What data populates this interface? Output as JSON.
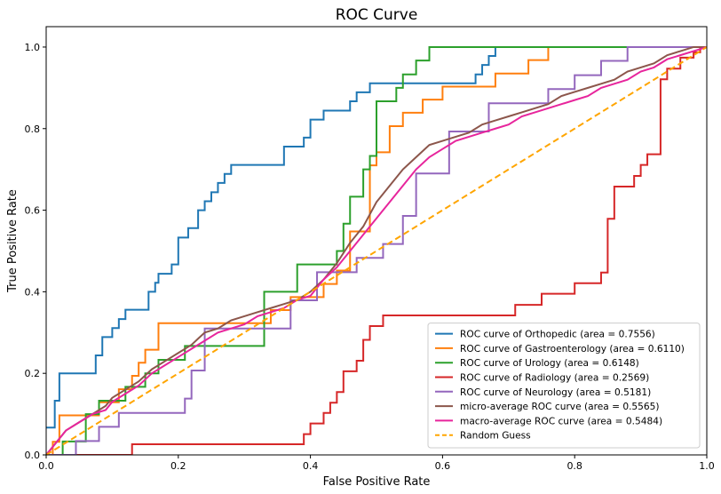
{
  "chart_data": {
    "type": "line",
    "title": "ROC Curve",
    "xlabel": "False Positive Rate",
    "ylabel": "True Positive Rate",
    "xlim": [
      0,
      1
    ],
    "ylim": [
      0,
      1.05
    ],
    "xticks": [
      "0.0",
      "0.2",
      "0.4",
      "0.6",
      "0.8",
      "1.0"
    ],
    "yticks": [
      "0.0",
      "0.2",
      "0.4",
      "0.6",
      "0.8",
      "1.0"
    ],
    "grid": false,
    "legend_position": "lower-right",
    "series": [
      {
        "name": "ROC curve of Orthopedic (area = 0.7556)",
        "color": "#1f77b4",
        "step": true,
        "x": [
          0,
          0.013,
          0.013,
          0.02,
          0.02,
          0.075,
          0.075,
          0.085,
          0.085,
          0.1,
          0.1,
          0.11,
          0.11,
          0.12,
          0.12,
          0.155,
          0.155,
          0.165,
          0.165,
          0.17,
          0.17,
          0.19,
          0.19,
          0.2,
          0.2,
          0.215,
          0.215,
          0.23,
          0.23,
          0.24,
          0.24,
          0.25,
          0.25,
          0.26,
          0.26,
          0.27,
          0.27,
          0.28,
          0.28,
          0.36,
          0.36,
          0.39,
          0.39,
          0.4,
          0.4,
          0.42,
          0.42,
          0.46,
          0.46,
          0.47,
          0.47,
          0.48,
          0.48,
          0.49,
          0.49,
          0.5,
          0.5,
          0.51,
          0.51,
          0.52,
          0.52,
          0.54,
          0.54,
          0.65,
          0.65,
          0.66,
          0.66,
          0.67,
          0.67,
          0.68,
          0.68,
          1.0
        ],
        "y": [
          0.067,
          0.067,
          0.133,
          0.133,
          0.2,
          0.2,
          0.244,
          0.244,
          0.289,
          0.289,
          0.311,
          0.311,
          0.333,
          0.333,
          0.356,
          0.356,
          0.4,
          0.4,
          0.422,
          0.422,
          0.444,
          0.444,
          0.467,
          0.467,
          0.533,
          0.533,
          0.556,
          0.556,
          0.6,
          0.6,
          0.622,
          0.622,
          0.644,
          0.644,
          0.667,
          0.667,
          0.689,
          0.689,
          0.711,
          0.711,
          0.756,
          0.756,
          0.778,
          0.778,
          0.822,
          0.822,
          0.844,
          0.844,
          0.867,
          0.867,
          0.889,
          0.889,
          0.889,
          0.889,
          0.911,
          0.911,
          0.911,
          0.911,
          0.911,
          0.911,
          0.911,
          0.911,
          0.911,
          0.911,
          0.933,
          0.933,
          0.956,
          0.956,
          0.978,
          0.978,
          1.0,
          1.0
        ]
      },
      {
        "name": "ROC curve of Gastroenterology (area = 0.6110)",
        "color": "#ff7f0e",
        "step": true,
        "x": [
          0,
          0.01,
          0.01,
          0.02,
          0.02,
          0.08,
          0.08,
          0.11,
          0.11,
          0.13,
          0.13,
          0.14,
          0.14,
          0.15,
          0.15,
          0.17,
          0.17,
          0.23,
          0.23,
          0.32,
          0.32,
          0.34,
          0.34,
          0.37,
          0.37,
          0.42,
          0.42,
          0.44,
          0.44,
          0.46,
          0.46,
          0.49,
          0.49,
          0.5,
          0.5,
          0.52,
          0.52,
          0.54,
          0.54,
          0.55,
          0.55,
          0.57,
          0.57,
          0.6,
          0.6,
          0.68,
          0.68,
          0.73,
          0.73,
          0.76,
          0.76,
          0.8,
          0.8,
          0.98,
          0.98,
          1.0
        ],
        "y": [
          0,
          0,
          0.032,
          0.032,
          0.097,
          0.097,
          0.129,
          0.129,
          0.161,
          0.161,
          0.194,
          0.194,
          0.226,
          0.226,
          0.258,
          0.258,
          0.323,
          0.323,
          0.323,
          0.323,
          0.323,
          0.323,
          0.355,
          0.355,
          0.387,
          0.387,
          0.419,
          0.419,
          0.452,
          0.452,
          0.548,
          0.548,
          0.71,
          0.71,
          0.742,
          0.742,
          0.806,
          0.806,
          0.839,
          0.839,
          0.839,
          0.839,
          0.871,
          0.871,
          0.903,
          0.903,
          0.935,
          0.935,
          0.968,
          0.968,
          1.0,
          1.0,
          1.0,
          1.0,
          1.0,
          1.0
        ]
      },
      {
        "name": "ROC curve of Urology (area = 0.6148)",
        "color": "#2ca02c",
        "step": true,
        "x": [
          0,
          0.025,
          0.025,
          0.06,
          0.06,
          0.08,
          0.08,
          0.09,
          0.09,
          0.12,
          0.12,
          0.13,
          0.13,
          0.15,
          0.15,
          0.17,
          0.17,
          0.19,
          0.19,
          0.21,
          0.21,
          0.33,
          0.33,
          0.38,
          0.38,
          0.44,
          0.44,
          0.45,
          0.45,
          0.46,
          0.46,
          0.48,
          0.48,
          0.49,
          0.49,
          0.5,
          0.5,
          0.53,
          0.53,
          0.54,
          0.54,
          0.56,
          0.56,
          0.58,
          0.58,
          0.62,
          0.62,
          0.64,
          0.64,
          1.0
        ],
        "y": [
          0,
          0,
          0.033,
          0.033,
          0.1,
          0.1,
          0.133,
          0.133,
          0.133,
          0.133,
          0.167,
          0.167,
          0.167,
          0.167,
          0.2,
          0.2,
          0.233,
          0.233,
          0.233,
          0.233,
          0.267,
          0.267,
          0.4,
          0.4,
          0.467,
          0.467,
          0.5,
          0.5,
          0.567,
          0.567,
          0.633,
          0.633,
          0.7,
          0.7,
          0.733,
          0.733,
          0.867,
          0.867,
          0.9,
          0.9,
          0.933,
          0.933,
          0.967,
          0.967,
          1.0,
          1.0,
          1.0,
          1.0,
          1.0,
          1.0
        ]
      },
      {
        "name": "ROC curve of Radiology (area = 0.2569)",
        "color": "#d62728",
        "step": true,
        "x": [
          0,
          0.13,
          0.13,
          0.39,
          0.39,
          0.4,
          0.4,
          0.42,
          0.42,
          0.43,
          0.43,
          0.44,
          0.44,
          0.45,
          0.45,
          0.47,
          0.47,
          0.48,
          0.48,
          0.49,
          0.49,
          0.51,
          0.51,
          0.71,
          0.71,
          0.75,
          0.75,
          0.8,
          0.8,
          0.84,
          0.84,
          0.85,
          0.85,
          0.86,
          0.86,
          0.89,
          0.89,
          0.9,
          0.9,
          0.91,
          0.91,
          0.93,
          0.93,
          0.94,
          0.94,
          0.96,
          0.96,
          0.98,
          0.98,
          0.99,
          0.99,
          1.0
        ],
        "y": [
          0,
          0,
          0.026,
          0.026,
          0.051,
          0.051,
          0.077,
          0.077,
          0.103,
          0.103,
          0.128,
          0.128,
          0.154,
          0.154,
          0.205,
          0.205,
          0.231,
          0.231,
          0.282,
          0.282,
          0.316,
          0.316,
          0.342,
          0.342,
          0.368,
          0.368,
          0.395,
          0.395,
          0.421,
          0.421,
          0.447,
          0.447,
          0.579,
          0.579,
          0.658,
          0.658,
          0.684,
          0.684,
          0.711,
          0.711,
          0.737,
          0.737,
          0.921,
          0.921,
          0.947,
          0.947,
          0.974,
          0.974,
          0.987,
          0.987,
          1.0,
          1.0
        ]
      },
      {
        "name": "ROC curve of Neurology (area = 0.5181)",
        "color": "#9467bd",
        "step": true,
        "x": [
          0,
          0.04,
          0.04,
          0.045,
          0.045,
          0.08,
          0.08,
          0.09,
          0.09,
          0.11,
          0.11,
          0.21,
          0.21,
          0.22,
          0.22,
          0.24,
          0.24,
          0.28,
          0.28,
          0.37,
          0.37,
          0.41,
          0.41,
          0.47,
          0.47,
          0.51,
          0.51,
          0.54,
          0.54,
          0.56,
          0.56,
          0.61,
          0.61,
          0.67,
          0.67,
          0.76,
          0.76,
          0.8,
          0.8,
          0.84,
          0.84,
          0.86,
          0.86,
          0.88,
          0.88,
          0.9,
          0.9,
          1.0
        ],
        "y": [
          0,
          0,
          0,
          0,
          0.034,
          0.034,
          0.069,
          0.069,
          0.069,
          0.069,
          0.103,
          0.103,
          0.138,
          0.138,
          0.207,
          0.207,
          0.31,
          0.31,
          0.31,
          0.31,
          0.379,
          0.379,
          0.448,
          0.448,
          0.483,
          0.483,
          0.517,
          0.517,
          0.586,
          0.586,
          0.69,
          0.69,
          0.793,
          0.793,
          0.862,
          0.862,
          0.897,
          0.897,
          0.931,
          0.931,
          0.966,
          0.966,
          0.966,
          0.966,
          1.0,
          1.0,
          1.0,
          1.0
        ]
      },
      {
        "name": "micro-average ROC curve (area = 0.5565)",
        "color": "#8c564b",
        "step": false,
        "x": [
          0,
          0.01,
          0.02,
          0.03,
          0.05,
          0.07,
          0.09,
          0.1,
          0.12,
          0.14,
          0.16,
          0.18,
          0.2,
          0.22,
          0.24,
          0.26,
          0.28,
          0.3,
          0.32,
          0.34,
          0.36,
          0.38,
          0.4,
          0.42,
          0.44,
          0.46,
          0.48,
          0.5,
          0.52,
          0.54,
          0.56,
          0.58,
          0.6,
          0.62,
          0.64,
          0.66,
          0.68,
          0.7,
          0.72,
          0.74,
          0.76,
          0.78,
          0.8,
          0.82,
          0.84,
          0.86,
          0.88,
          0.9,
          0.92,
          0.94,
          0.96,
          0.98,
          1.0
        ],
        "y": [
          0,
          0.02,
          0.04,
          0.06,
          0.08,
          0.1,
          0.12,
          0.14,
          0.16,
          0.18,
          0.21,
          0.23,
          0.25,
          0.27,
          0.3,
          0.31,
          0.33,
          0.34,
          0.35,
          0.36,
          0.37,
          0.38,
          0.4,
          0.43,
          0.47,
          0.52,
          0.56,
          0.62,
          0.66,
          0.7,
          0.73,
          0.76,
          0.77,
          0.78,
          0.79,
          0.81,
          0.82,
          0.83,
          0.84,
          0.85,
          0.86,
          0.88,
          0.89,
          0.9,
          0.91,
          0.92,
          0.94,
          0.95,
          0.96,
          0.98,
          0.99,
          1.0,
          1.0
        ]
      },
      {
        "name": "macro-average ROC curve (area = 0.5484)",
        "color": "#e7259c",
        "step": false,
        "x": [
          0,
          0.01,
          0.02,
          0.03,
          0.05,
          0.07,
          0.09,
          0.1,
          0.12,
          0.14,
          0.16,
          0.18,
          0.2,
          0.22,
          0.24,
          0.26,
          0.28,
          0.3,
          0.32,
          0.34,
          0.36,
          0.38,
          0.4,
          0.42,
          0.44,
          0.46,
          0.48,
          0.5,
          0.52,
          0.54,
          0.56,
          0.58,
          0.6,
          0.62,
          0.64,
          0.66,
          0.68,
          0.7,
          0.72,
          0.74,
          0.76,
          0.78,
          0.8,
          0.82,
          0.84,
          0.86,
          0.88,
          0.9,
          0.92,
          0.94,
          0.96,
          0.98,
          1.0
        ],
        "y": [
          0,
          0.02,
          0.04,
          0.06,
          0.08,
          0.1,
          0.11,
          0.13,
          0.15,
          0.17,
          0.2,
          0.22,
          0.24,
          0.26,
          0.28,
          0.3,
          0.31,
          0.32,
          0.34,
          0.35,
          0.36,
          0.38,
          0.39,
          0.43,
          0.46,
          0.5,
          0.54,
          0.58,
          0.62,
          0.66,
          0.7,
          0.73,
          0.75,
          0.77,
          0.78,
          0.79,
          0.8,
          0.81,
          0.83,
          0.84,
          0.85,
          0.86,
          0.87,
          0.88,
          0.9,
          0.91,
          0.92,
          0.94,
          0.95,
          0.97,
          0.98,
          0.99,
          1.0
        ]
      },
      {
        "name": "Random Guess",
        "color": "#ffa500",
        "dashed": true,
        "step": false,
        "x": [
          0,
          1
        ],
        "y": [
          0,
          1
        ]
      }
    ]
  }
}
